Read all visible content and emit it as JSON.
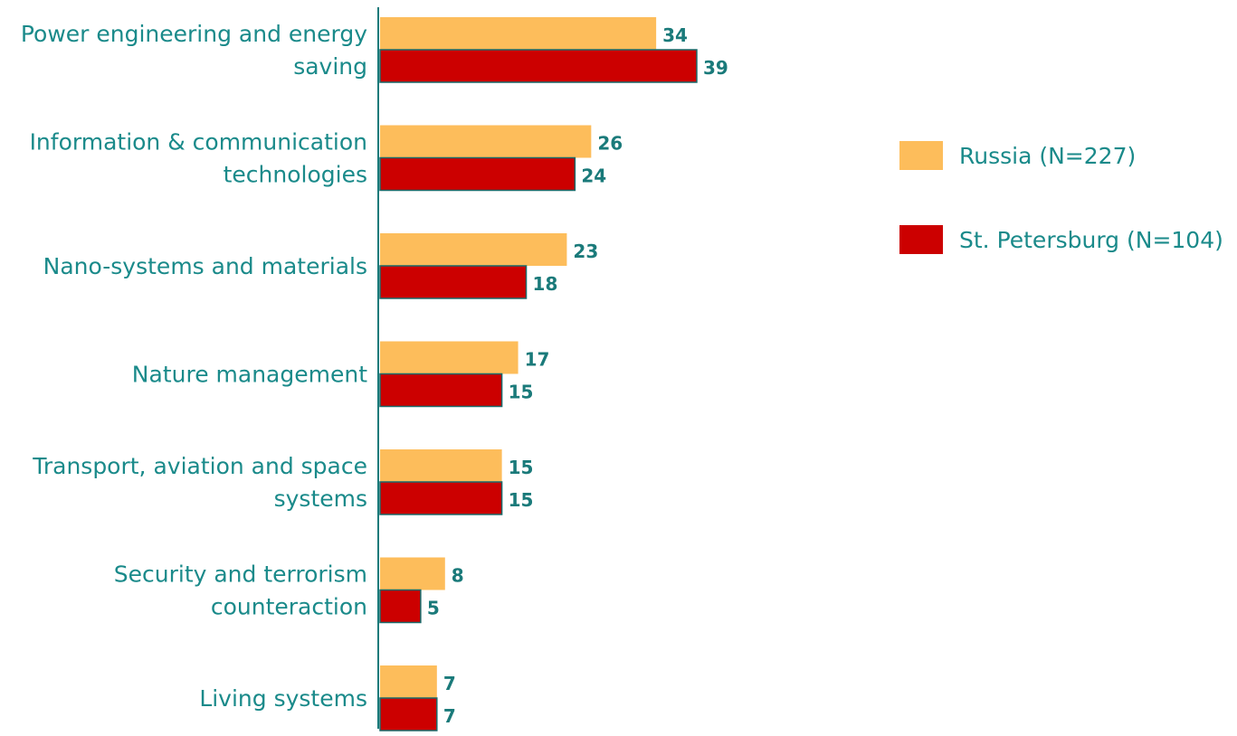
{
  "chart_data": {
    "type": "bar",
    "orientation": "horizontal",
    "categories": [
      [
        "Power engineering and energy",
        "saving"
      ],
      [
        "Information & communication",
        "technologies"
      ],
      [
        "Nano-systems and materials"
      ],
      [
        "Nature management"
      ],
      [
        "Transport, aviation and space",
        "systems"
      ],
      [
        "Security and terrorism",
        "counteraction"
      ],
      [
        "Living systems"
      ]
    ],
    "series": [
      {
        "name": "Russia (N=227)",
        "color": "#fdbd5b",
        "values": [
          34,
          26,
          23,
          17,
          15,
          8,
          7
        ]
      },
      {
        "name": "St. Petersburg (N=104)",
        "color": "#cc0000",
        "values": [
          39,
          24,
          18,
          15,
          15,
          5,
          7
        ]
      }
    ],
    "xlim": [
      0,
      39
    ],
    "legend_position": "right",
    "grid": false,
    "axis_color": "#1a7a7a"
  }
}
